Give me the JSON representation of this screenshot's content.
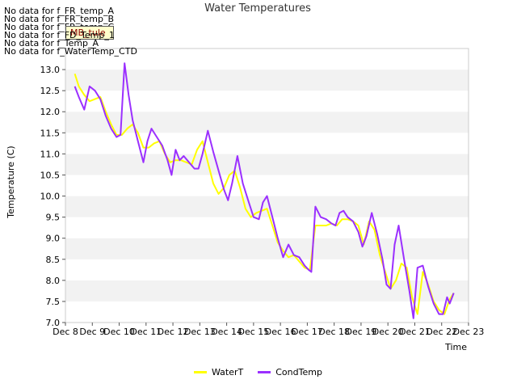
{
  "chart_data": {
    "type": "line",
    "title": "Water Temperatures",
    "xlabel": "Time",
    "ylabel": "Temperature (C)",
    "ylim": [
      7.0,
      13.5
    ],
    "xlim": [
      8,
      23
    ],
    "grid": "horizontal alternating bands",
    "x_ticks": [
      "Dec 8",
      "Dec 9",
      "Dec 10",
      "Dec 11",
      "Dec 12",
      "Dec 13",
      "Dec 14",
      "Dec 15",
      "Dec 16",
      "Dec 17",
      "Dec 18",
      "Dec 19",
      "Dec 20",
      "Dec 21",
      "Dec 22",
      "Dec 23"
    ],
    "y_ticks": [
      "7.0",
      "7.5",
      "8.0",
      "8.5",
      "9.0",
      "9.5",
      "10.0",
      "10.5",
      "11.0",
      "11.5",
      "12.0",
      "12.5",
      "13.0"
    ],
    "no_data_messages": [
      "No data for f_FR_temp_A",
      "No data for f_FR_temp_B",
      "No data for f_FR_temp_C",
      "No data for f_FD_Temp_1",
      "No data for f_Temp_A",
      "No data for f_WaterTemp_CTD"
    ],
    "badge_label": "MB_tule",
    "legend_position": "bottom-center",
    "series": [
      {
        "name": "WaterT",
        "color": "#ffff00",
        "x": [
          8.35,
          8.5,
          8.7,
          8.9,
          9.1,
          9.3,
          9.5,
          9.7,
          9.9,
          10.1,
          10.3,
          10.5,
          10.7,
          10.9,
          11.1,
          11.3,
          11.5,
          11.7,
          11.9,
          12.1,
          12.3,
          12.5,
          12.7,
          12.9,
          13.1,
          13.3,
          13.5,
          13.7,
          13.9,
          14.1,
          14.3,
          14.5,
          14.7,
          14.9,
          15.1,
          15.3,
          15.5,
          15.7,
          15.9,
          16.1,
          16.3,
          16.5,
          16.7,
          16.9,
          17.1,
          17.3,
          17.5,
          17.7,
          17.9,
          18.1,
          18.3,
          18.5,
          18.7,
          18.9,
          19.1,
          19.3,
          19.5,
          19.7,
          19.9,
          20.1,
          20.3,
          20.5,
          20.7,
          20.9,
          21.1,
          21.3,
          21.5,
          21.7,
          21.9,
          22.1,
          22.3,
          22.45
        ],
        "y": [
          12.9,
          12.6,
          12.4,
          12.25,
          12.3,
          12.35,
          12.0,
          11.7,
          11.45,
          11.45,
          11.6,
          11.7,
          11.5,
          11.15,
          11.15,
          11.25,
          11.3,
          11.0,
          10.8,
          10.85,
          10.85,
          10.8,
          10.75,
          11.1,
          11.3,
          10.8,
          10.3,
          10.05,
          10.2,
          10.5,
          10.6,
          10.2,
          9.7,
          9.5,
          9.6,
          9.65,
          9.7,
          9.3,
          8.9,
          8.7,
          8.55,
          8.6,
          8.45,
          8.3,
          8.25,
          9.3,
          9.3,
          9.3,
          9.35,
          9.3,
          9.45,
          9.45,
          9.4,
          9.3,
          8.85,
          9.4,
          9.2,
          8.6,
          8.2,
          7.8,
          8.0,
          8.4,
          8.3,
          7.6,
          7.2,
          8.2,
          7.9,
          7.5,
          7.3,
          7.2,
          7.55,
          7.7
        ]
      },
      {
        "name": "CondTemp",
        "color": "#9b30ff",
        "x": [
          8.35,
          8.5,
          8.7,
          8.9,
          9.1,
          9.3,
          9.5,
          9.7,
          9.9,
          10.05,
          10.2,
          10.35,
          10.5,
          10.7,
          10.9,
          11.05,
          11.2,
          11.4,
          11.6,
          11.8,
          11.95,
          12.1,
          12.25,
          12.4,
          12.6,
          12.8,
          12.95,
          13.1,
          13.3,
          13.5,
          13.7,
          13.9,
          14.05,
          14.2,
          14.4,
          14.6,
          14.8,
          15.0,
          15.2,
          15.35,
          15.5,
          15.7,
          15.9,
          16.1,
          16.3,
          16.5,
          16.7,
          16.9,
          17.05,
          17.15,
          17.3,
          17.5,
          17.7,
          17.9,
          18.05,
          18.2,
          18.35,
          18.5,
          18.7,
          18.9,
          19.05,
          19.2,
          19.4,
          19.6,
          19.8,
          19.95,
          20.1,
          20.25,
          20.4,
          20.6,
          20.8,
          20.95,
          21.1,
          21.3,
          21.5,
          21.7,
          21.9,
          22.05,
          22.2,
          22.3,
          22.45
        ],
        "y": [
          12.6,
          12.35,
          12.05,
          12.6,
          12.5,
          12.3,
          11.9,
          11.6,
          11.4,
          11.45,
          13.15,
          12.4,
          11.8,
          11.3,
          10.8,
          11.3,
          11.6,
          11.4,
          11.2,
          10.85,
          10.5,
          11.1,
          10.85,
          10.95,
          10.8,
          10.65,
          10.65,
          11.0,
          11.55,
          11.05,
          10.6,
          10.15,
          9.9,
          10.3,
          10.95,
          10.3,
          9.9,
          9.5,
          9.45,
          9.85,
          10.0,
          9.5,
          9.0,
          8.55,
          8.85,
          8.6,
          8.55,
          8.35,
          8.25,
          8.2,
          9.75,
          9.5,
          9.45,
          9.35,
          9.3,
          9.6,
          9.65,
          9.5,
          9.4,
          9.15,
          8.8,
          9.05,
          9.6,
          9.1,
          8.5,
          7.9,
          7.8,
          8.85,
          9.3,
          8.5,
          7.75,
          7.1,
          8.3,
          8.35,
          7.85,
          7.45,
          7.2,
          7.2,
          7.6,
          7.45,
          7.7
        ]
      }
    ]
  }
}
